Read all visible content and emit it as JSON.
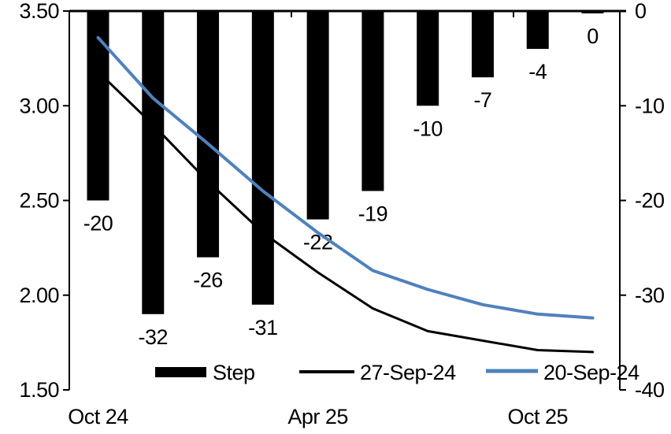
{
  "chart_data": {
    "type": "bar",
    "subtype": "combo-bar-line-dual-axis",
    "title": "",
    "categories": [
      "1",
      "2",
      "3",
      "4",
      "5",
      "6",
      "7",
      "8",
      "9",
      "10"
    ],
    "x_tick_labels": [
      {
        "label": "Oct 24",
        "bar_index": 0
      },
      {
        "label": "Apr 25",
        "bar_index": 4
      },
      {
        "label": "Oct 25",
        "bar_index": 8
      }
    ],
    "left_axis": {
      "tick_labels": [
        "3.50",
        "3.00",
        "2.50",
        "2.00",
        "1.50"
      ],
      "min": 1.5,
      "max": 3.5
    },
    "right_axis": {
      "tick_labels": [
        "0",
        "-10",
        "-20",
        "-30",
        "-40"
      ],
      "min": -40,
      "max": 0
    },
    "bars": {
      "name": "Step",
      "axis": "right",
      "color": "#000000",
      "values": [
        -20,
        -32,
        -26,
        -31,
        -22,
        -19,
        -10,
        -7,
        -4,
        0
      ],
      "data_labels": [
        "-20",
        "-32",
        "-26",
        "-31",
        "-22",
        "-19",
        "-10",
        "-7",
        "-4",
        "0"
      ]
    },
    "series": [
      {
        "name": "27-Sep-24",
        "axis": "left",
        "color": "#000000",
        "stroke_width": 3,
        "values": [
          3.18,
          2.9,
          2.6,
          2.33,
          2.12,
          1.93,
          1.81,
          1.76,
          1.71,
          1.7
        ]
      },
      {
        "name": "20-Sep-24",
        "axis": "left",
        "color": "#4f81bd",
        "stroke_width": 4,
        "values": [
          3.36,
          3.04,
          2.8,
          2.55,
          2.33,
          2.13,
          2.03,
          1.95,
          1.9,
          1.88
        ]
      }
    ],
    "legend_position": "bottom",
    "grid": false
  },
  "legend": {
    "step_label": "Step",
    "line1_label": "27-Sep-24",
    "line2_label": "20-Sep-24"
  }
}
